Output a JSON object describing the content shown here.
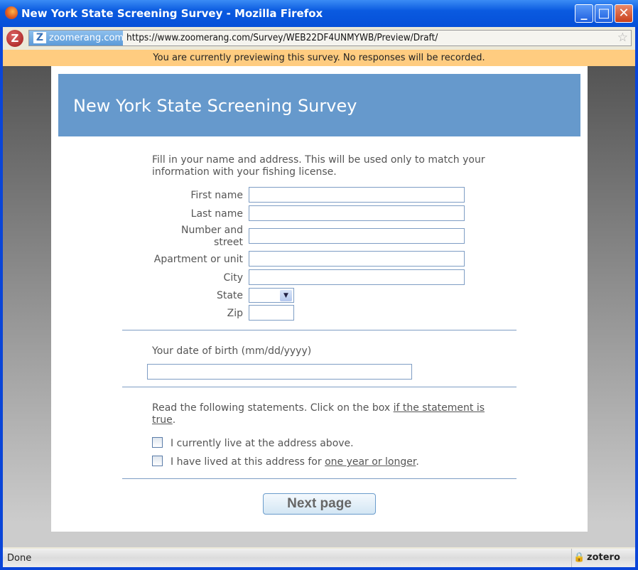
{
  "window": {
    "title": "New York State Screening Survey - Mozilla Firefox",
    "minimize": "_",
    "maximize": "□",
    "close": "✕"
  },
  "browser": {
    "site_label": "zoomerang.com",
    "url": "https://www.zoomerang.com/Survey/WEB22DF4UNMYWB/Preview/Draft/",
    "preview_notice": "You are currently previewing this survey. No responses will be recorded."
  },
  "survey": {
    "title": "New York State Screening Survey",
    "intro": "Fill in your name and address.  This will be used only to match your information with your fishing license.",
    "fields": {
      "first_name": "First name",
      "last_name": "Last name",
      "street": "Number and street",
      "apartment": "Apartment or unit",
      "city": "City",
      "state": "State",
      "zip": "Zip"
    },
    "dob_label": "Your date of birth (mm/dd/yyyy)",
    "statements_intro": "Read the following statements.  Click on the box ",
    "statements_intro_link": "if the statement is true",
    "statements_intro_end": ".",
    "statement1": "I currently live at the address above.",
    "statement2_pre": "I have lived at this address for ",
    "statement2_link": "one year or longer",
    "statement2_end": ".",
    "next_button": "Next page"
  },
  "status": {
    "text": "Done",
    "zotero": "zotero"
  }
}
